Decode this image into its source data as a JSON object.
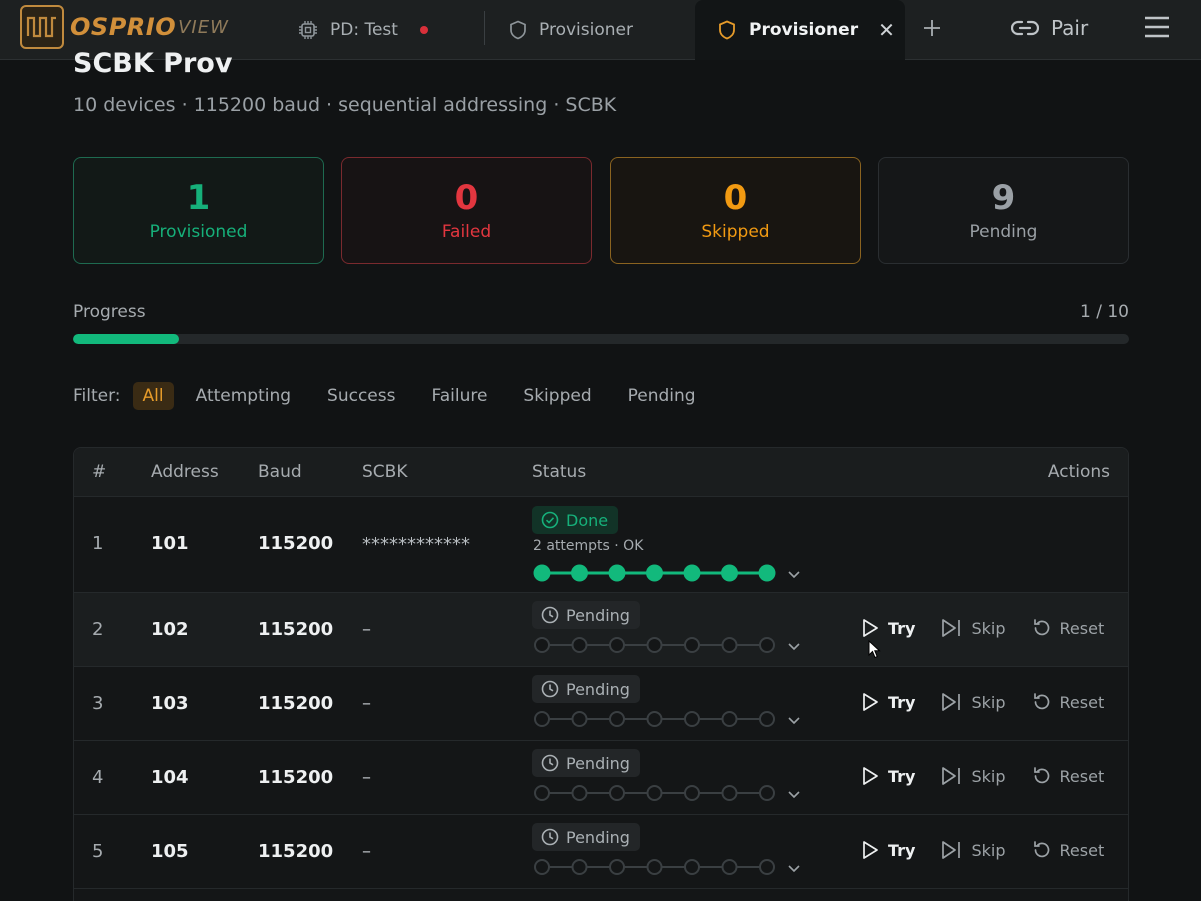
{
  "app": {
    "logo_text": "OSPRIO",
    "logo_sub": "VIEW"
  },
  "tabs": [
    {
      "label": "PD: Test",
      "has_alert_dot": true
    },
    {
      "label": "Provisioner"
    },
    {
      "label": "Provisioner",
      "active": true
    }
  ],
  "topbar": {
    "pair_label": "Pair"
  },
  "page": {
    "title": "SCBK Prov",
    "subtitle": "10 devices · 115200 baud · sequential addressing · SCBK"
  },
  "stats": {
    "provisioned": {
      "value": "1",
      "label": "Provisioned"
    },
    "failed": {
      "value": "0",
      "label": "Failed"
    },
    "skipped": {
      "value": "0",
      "label": "Skipped"
    },
    "pending": {
      "value": "9",
      "label": "Pending"
    }
  },
  "progress": {
    "label": "Progress",
    "count": "1 / 10",
    "fraction": 0.1
  },
  "filter": {
    "label": "Filter:",
    "options": [
      "All",
      "Attempting",
      "Success",
      "Failure",
      "Skipped",
      "Pending"
    ],
    "active": "All"
  },
  "table": {
    "headers": {
      "idx": "#",
      "address": "Address",
      "baud": "Baud",
      "scbk": "SCBK",
      "status": "Status",
      "actions": "Actions"
    },
    "rows": [
      {
        "idx": "1",
        "address": "101",
        "baud": "115200",
        "scbk": "************",
        "status": "Done",
        "attempts": "2 attempts · OK",
        "steps_done": 7
      },
      {
        "idx": "2",
        "address": "102",
        "baud": "115200",
        "scbk": "–",
        "status": "Pending",
        "steps_done": 0
      },
      {
        "idx": "3",
        "address": "103",
        "baud": "115200",
        "scbk": "–",
        "status": "Pending",
        "steps_done": 0
      },
      {
        "idx": "4",
        "address": "104",
        "baud": "115200",
        "scbk": "–",
        "status": "Pending",
        "steps_done": 0
      },
      {
        "idx": "5",
        "address": "105",
        "baud": "115200",
        "scbk": "–",
        "status": "Pending",
        "steps_done": 0
      }
    ],
    "action_labels": {
      "try": "Try",
      "skip": "Skip",
      "reset": "Reset"
    }
  },
  "colors": {
    "success": "#12b97c",
    "failure": "#e2363f",
    "skipped": "#f19a12",
    "accent": "#d18f3a"
  }
}
